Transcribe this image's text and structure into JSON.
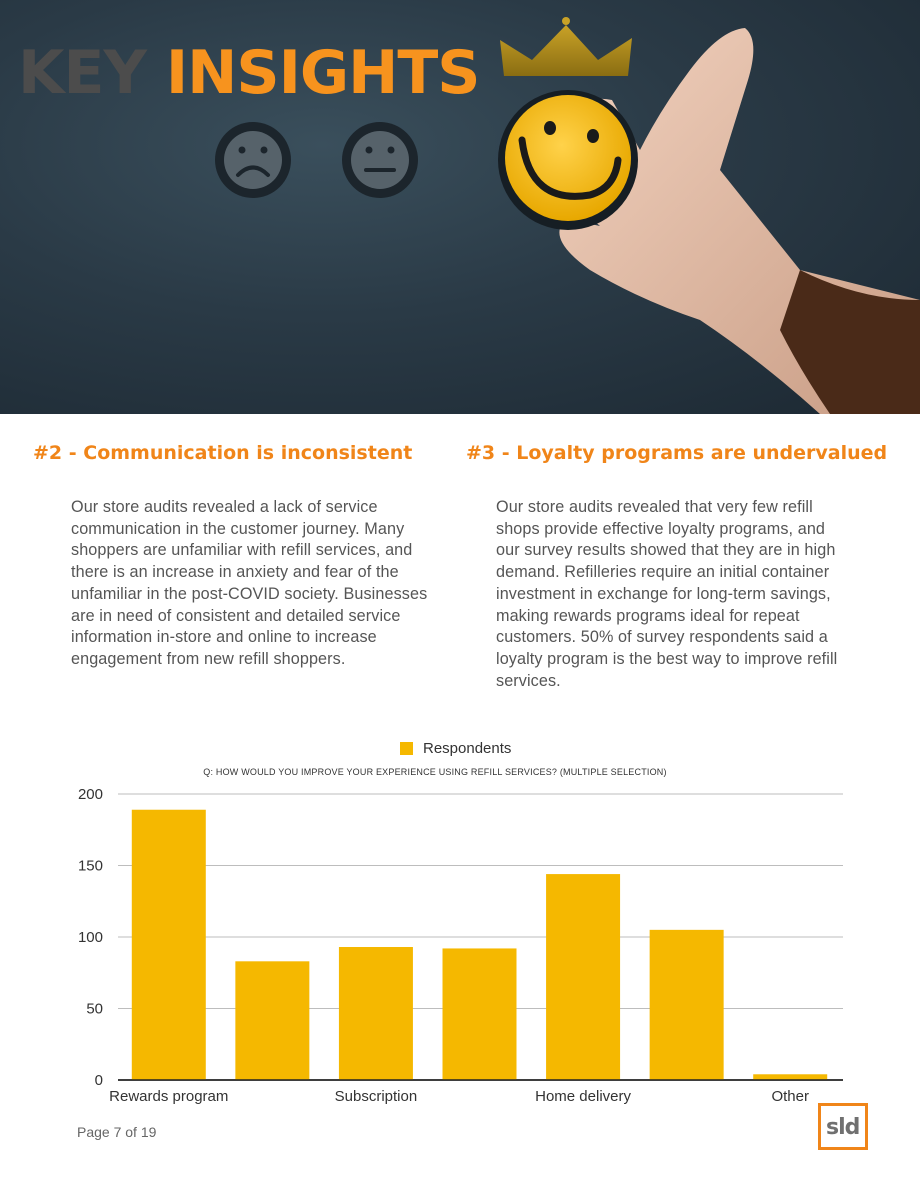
{
  "hero": {
    "title_word1": "KEY",
    "title_word2": "INSIGHTS"
  },
  "sections": [
    {
      "heading": "#2 - Communication is inconsistent",
      "body": "Our store audits revealed a lack of service communication in the customer journey. Many shoppers are unfamiliar with refill services, and there is an increase in anxiety and fear of the unfamiliar in the post-COVID society. Businesses are in need of consistent and detailed service information in-store and online to increase engagement from new refill shoppers."
    },
    {
      "heading": "#3 - Loyalty programs are undervalued",
      "body": "Our store audits revealed that very few refill shops provide effective loyalty programs, and our survey results showed that they are in high demand. Refilleries require an initial container investment in exchange for long-term savings, making rewards programs ideal for repeat customers. 50% of survey respondents said a loyalty program is the best way to improve refill services."
    }
  ],
  "chart_data": {
    "type": "bar",
    "title": "Q: HOW WOULD YOU IMPROVE YOUR EXPERIENCE USING REFILL SERVICES? (MULTIPLE SELECTION)",
    "legend": "Respondents",
    "categories": [
      "Rewards program",
      "",
      "Subscription",
      "",
      "Home delivery",
      "",
      "Other"
    ],
    "values": [
      189,
      83,
      93,
      92,
      144,
      105,
      4
    ],
    "ylim": [
      0,
      200
    ],
    "yticks": [
      0,
      50,
      100,
      150,
      200
    ],
    "bar_color": "#f5b800",
    "grid": true
  },
  "footer": {
    "page": "Page 7 of 19",
    "logo_text": "sld"
  },
  "colors": {
    "accent": "#f08519",
    "bar": "#f5b800"
  }
}
